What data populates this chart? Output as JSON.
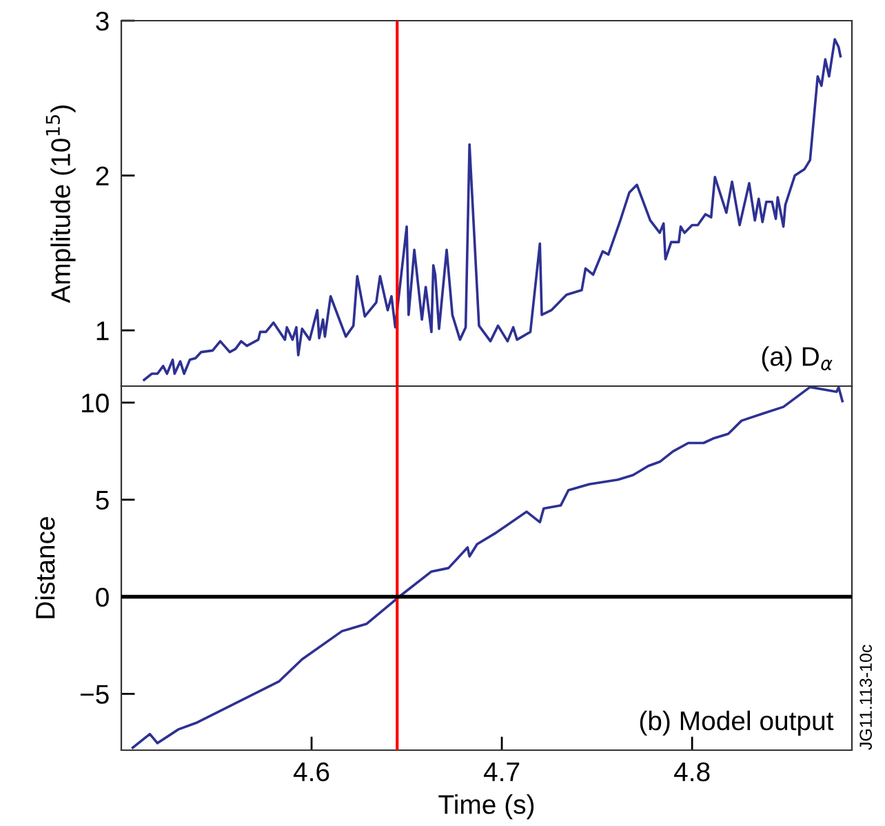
{
  "chart_data": [
    {
      "type": "line",
      "ylabel": "Amplitude (10$^{15}$)",
      "annotations": [
        "(a) D$_{α}$"
      ],
      "xlim": [
        4.5,
        4.884
      ],
      "ylim": [
        0.64,
        3.0
      ],
      "yticks": [
        1,
        2,
        3
      ],
      "tick_labels": "y",
      "grid": false,
      "legend": false,
      "series": [
        {
          "color": "#2e3192",
          "x": [
            4.512,
            4.516,
            4.519,
            4.522,
            4.524,
            4.527,
            4.528,
            4.531,
            4.533,
            4.536,
            4.539,
            4.542,
            4.548,
            4.552,
            4.557,
            4.56,
            4.563,
            4.566,
            4.572,
            4.573,
            4.576,
            4.58,
            4.586,
            4.587,
            4.59,
            4.592,
            4.593,
            4.595,
            4.599,
            4.603,
            4.604,
            4.606,
            4.607,
            4.61,
            4.618,
            4.622,
            4.624,
            4.628,
            4.634,
            4.636,
            4.64,
            4.642,
            4.644,
            4.65,
            4.651,
            4.654,
            4.658,
            4.66,
            4.663,
            4.664,
            4.665,
            4.667,
            4.671,
            4.674,
            4.678,
            4.681,
            4.683,
            4.688,
            4.694,
            4.698,
            4.703,
            4.706,
            4.708,
            4.715,
            4.72,
            4.721,
            4.726,
            4.734,
            4.742,
            4.744,
            4.748,
            4.753,
            4.756,
            4.762,
            4.767,
            4.771,
            4.778,
            4.783,
            4.785,
            4.786,
            4.789,
            4.793,
            4.794,
            4.796,
            4.8,
            4.803,
            4.807,
            4.81,
            4.812,
            4.818,
            4.821,
            4.825,
            4.83,
            4.833,
            4.835,
            4.837,
            4.839,
            4.842,
            4.844,
            4.845,
            4.848,
            4.849,
            4.854,
            4.859,
            4.862,
            4.866,
            4.868,
            4.87,
            4.872,
            4.875,
            4.877,
            4.878
          ],
          "values": [
            0.68,
            0.72,
            0.72,
            0.77,
            0.72,
            0.81,
            0.72,
            0.8,
            0.72,
            0.81,
            0.82,
            0.86,
            0.87,
            0.93,
            0.86,
            0.88,
            0.93,
            0.9,
            0.94,
            0.99,
            0.99,
            1.05,
            0.94,
            1.02,
            0.94,
            1.02,
            0.84,
            1.01,
            0.94,
            1.13,
            0.95,
            1.07,
            0.96,
            1.22,
            0.96,
            1.03,
            1.35,
            1.09,
            1.18,
            1.35,
            1.13,
            1.22,
            1.02,
            1.67,
            1.1,
            1.52,
            1.07,
            1.28,
            0.99,
            1.42,
            1.36,
            1.01,
            1.52,
            1.1,
            0.94,
            1.02,
            2.2,
            1.03,
            0.93,
            1.03,
            0.93,
            1.02,
            0.94,
            0.99,
            1.56,
            1.1,
            1.13,
            1.23,
            1.26,
            1.4,
            1.36,
            1.51,
            1.49,
            1.7,
            1.89,
            1.94,
            1.71,
            1.63,
            1.69,
            1.46,
            1.57,
            1.57,
            1.67,
            1.63,
            1.68,
            1.68,
            1.75,
            1.73,
            1.99,
            1.76,
            1.96,
            1.68,
            1.95,
            1.71,
            1.85,
            1.7,
            1.83,
            1.83,
            1.72,
            1.86,
            1.67,
            1.81,
            2.0,
            2.04,
            2.1,
            2.64,
            2.58,
            2.75,
            2.64,
            2.88,
            2.83,
            2.77
          ]
        }
      ],
      "ref_lines": [
        {
          "axis": "x",
          "value": 4.645,
          "color": "#ff0000"
        }
      ]
    },
    {
      "type": "line",
      "xlabel": "Time (s)",
      "ylabel": "Distance",
      "annotations": [
        "(b) Model output",
        "JG11.113-10c"
      ],
      "xlim": [
        4.5,
        4.884
      ],
      "ylim": [
        -7.9,
        10.85
      ],
      "xticks": [
        4.6,
        4.7,
        4.8
      ],
      "yticks": [
        {
          "value": -5,
          "label": "−5"
        },
        0,
        5,
        10
      ],
      "grid": false,
      "legend": false,
      "series": [
        {
          "color": "#2e3192",
          "x": [
            4.506,
            4.515,
            4.519,
            4.53,
            4.54,
            4.583,
            4.595,
            4.616,
            4.629,
            4.646,
            4.663,
            4.672,
            4.682,
            4.683,
            4.687,
            4.697,
            4.713,
            4.72,
            4.722,
            4.731,
            4.735,
            4.746,
            4.761,
            4.769,
            4.777,
            4.783,
            4.79,
            4.798,
            4.806,
            4.811,
            4.819,
            4.826,
            4.837,
            4.848,
            4.862,
            4.876,
            4.877,
            4.879
          ],
          "values": [
            -7.77,
            -7.07,
            -7.54,
            -6.83,
            -6.47,
            -4.35,
            -3.22,
            -1.77,
            -1.39,
            0.0,
            1.3,
            1.48,
            2.54,
            2.08,
            2.71,
            3.3,
            4.38,
            3.84,
            4.55,
            4.71,
            5.49,
            5.8,
            6.03,
            6.27,
            6.74,
            6.95,
            7.49,
            7.92,
            7.92,
            8.15,
            8.39,
            9.07,
            9.43,
            9.78,
            10.8,
            10.56,
            10.8,
            10.08
          ]
        }
      ],
      "ref_lines": [
        {
          "axis": "x",
          "value": 4.645,
          "color": "#ff0000"
        },
        {
          "axis": "y",
          "value": 0,
          "color": "#000000"
        }
      ]
    }
  ]
}
